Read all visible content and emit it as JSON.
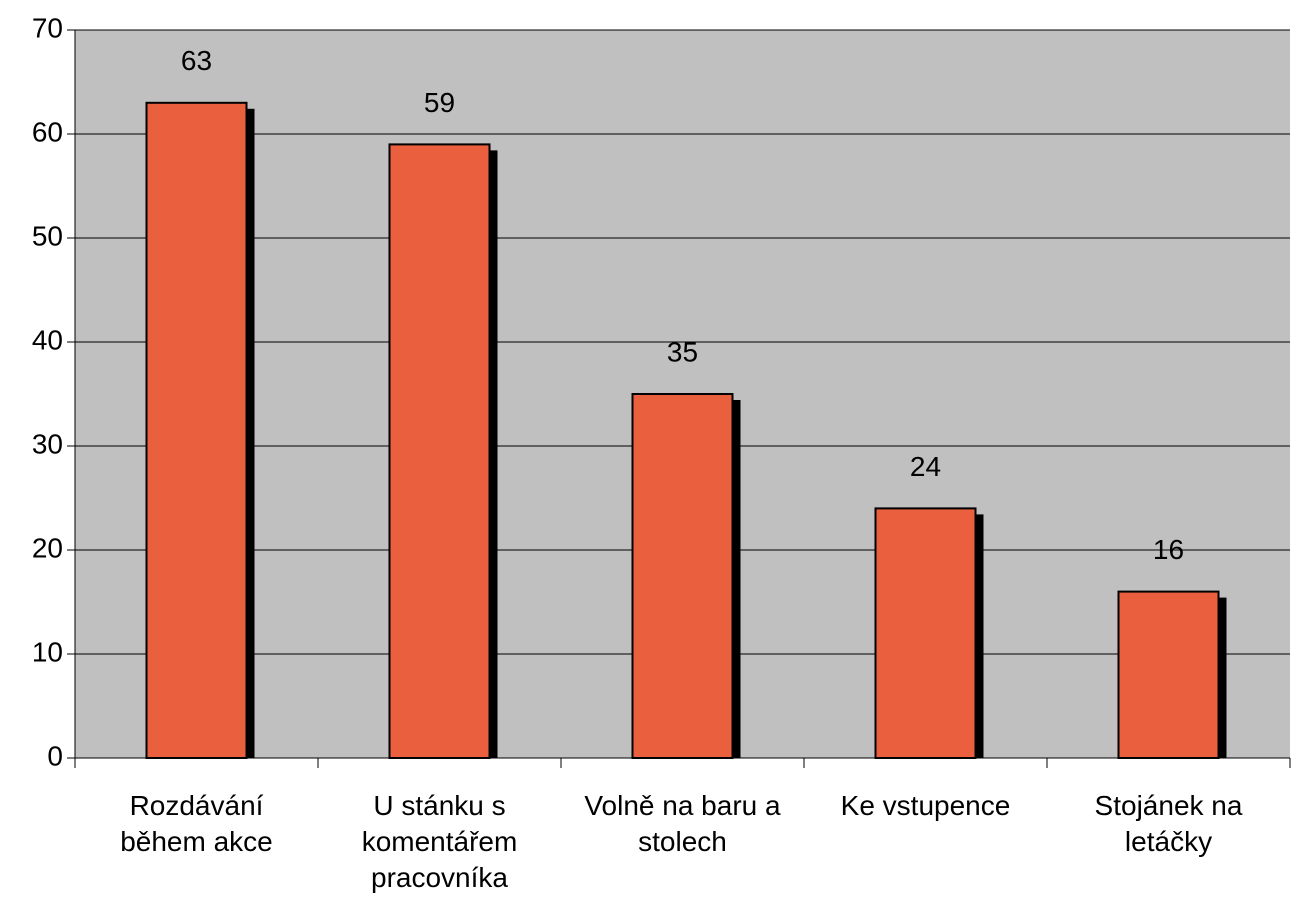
{
  "chart_data": {
    "type": "bar",
    "categories": [
      "Rozdávání během akce",
      "U stánku s komentářem pracovníka",
      "Volně na baru a stolech",
      "Ke vstupence",
      "Stojánek na letáčky"
    ],
    "values": [
      63,
      59,
      35,
      24,
      16
    ],
    "color": "#ea603f",
    "plot_background": "#c0c0c0",
    "ylim": [
      0,
      70
    ],
    "yticks": [
      0,
      10,
      20,
      30,
      40,
      50,
      60,
      70
    ],
    "grid": true
  }
}
